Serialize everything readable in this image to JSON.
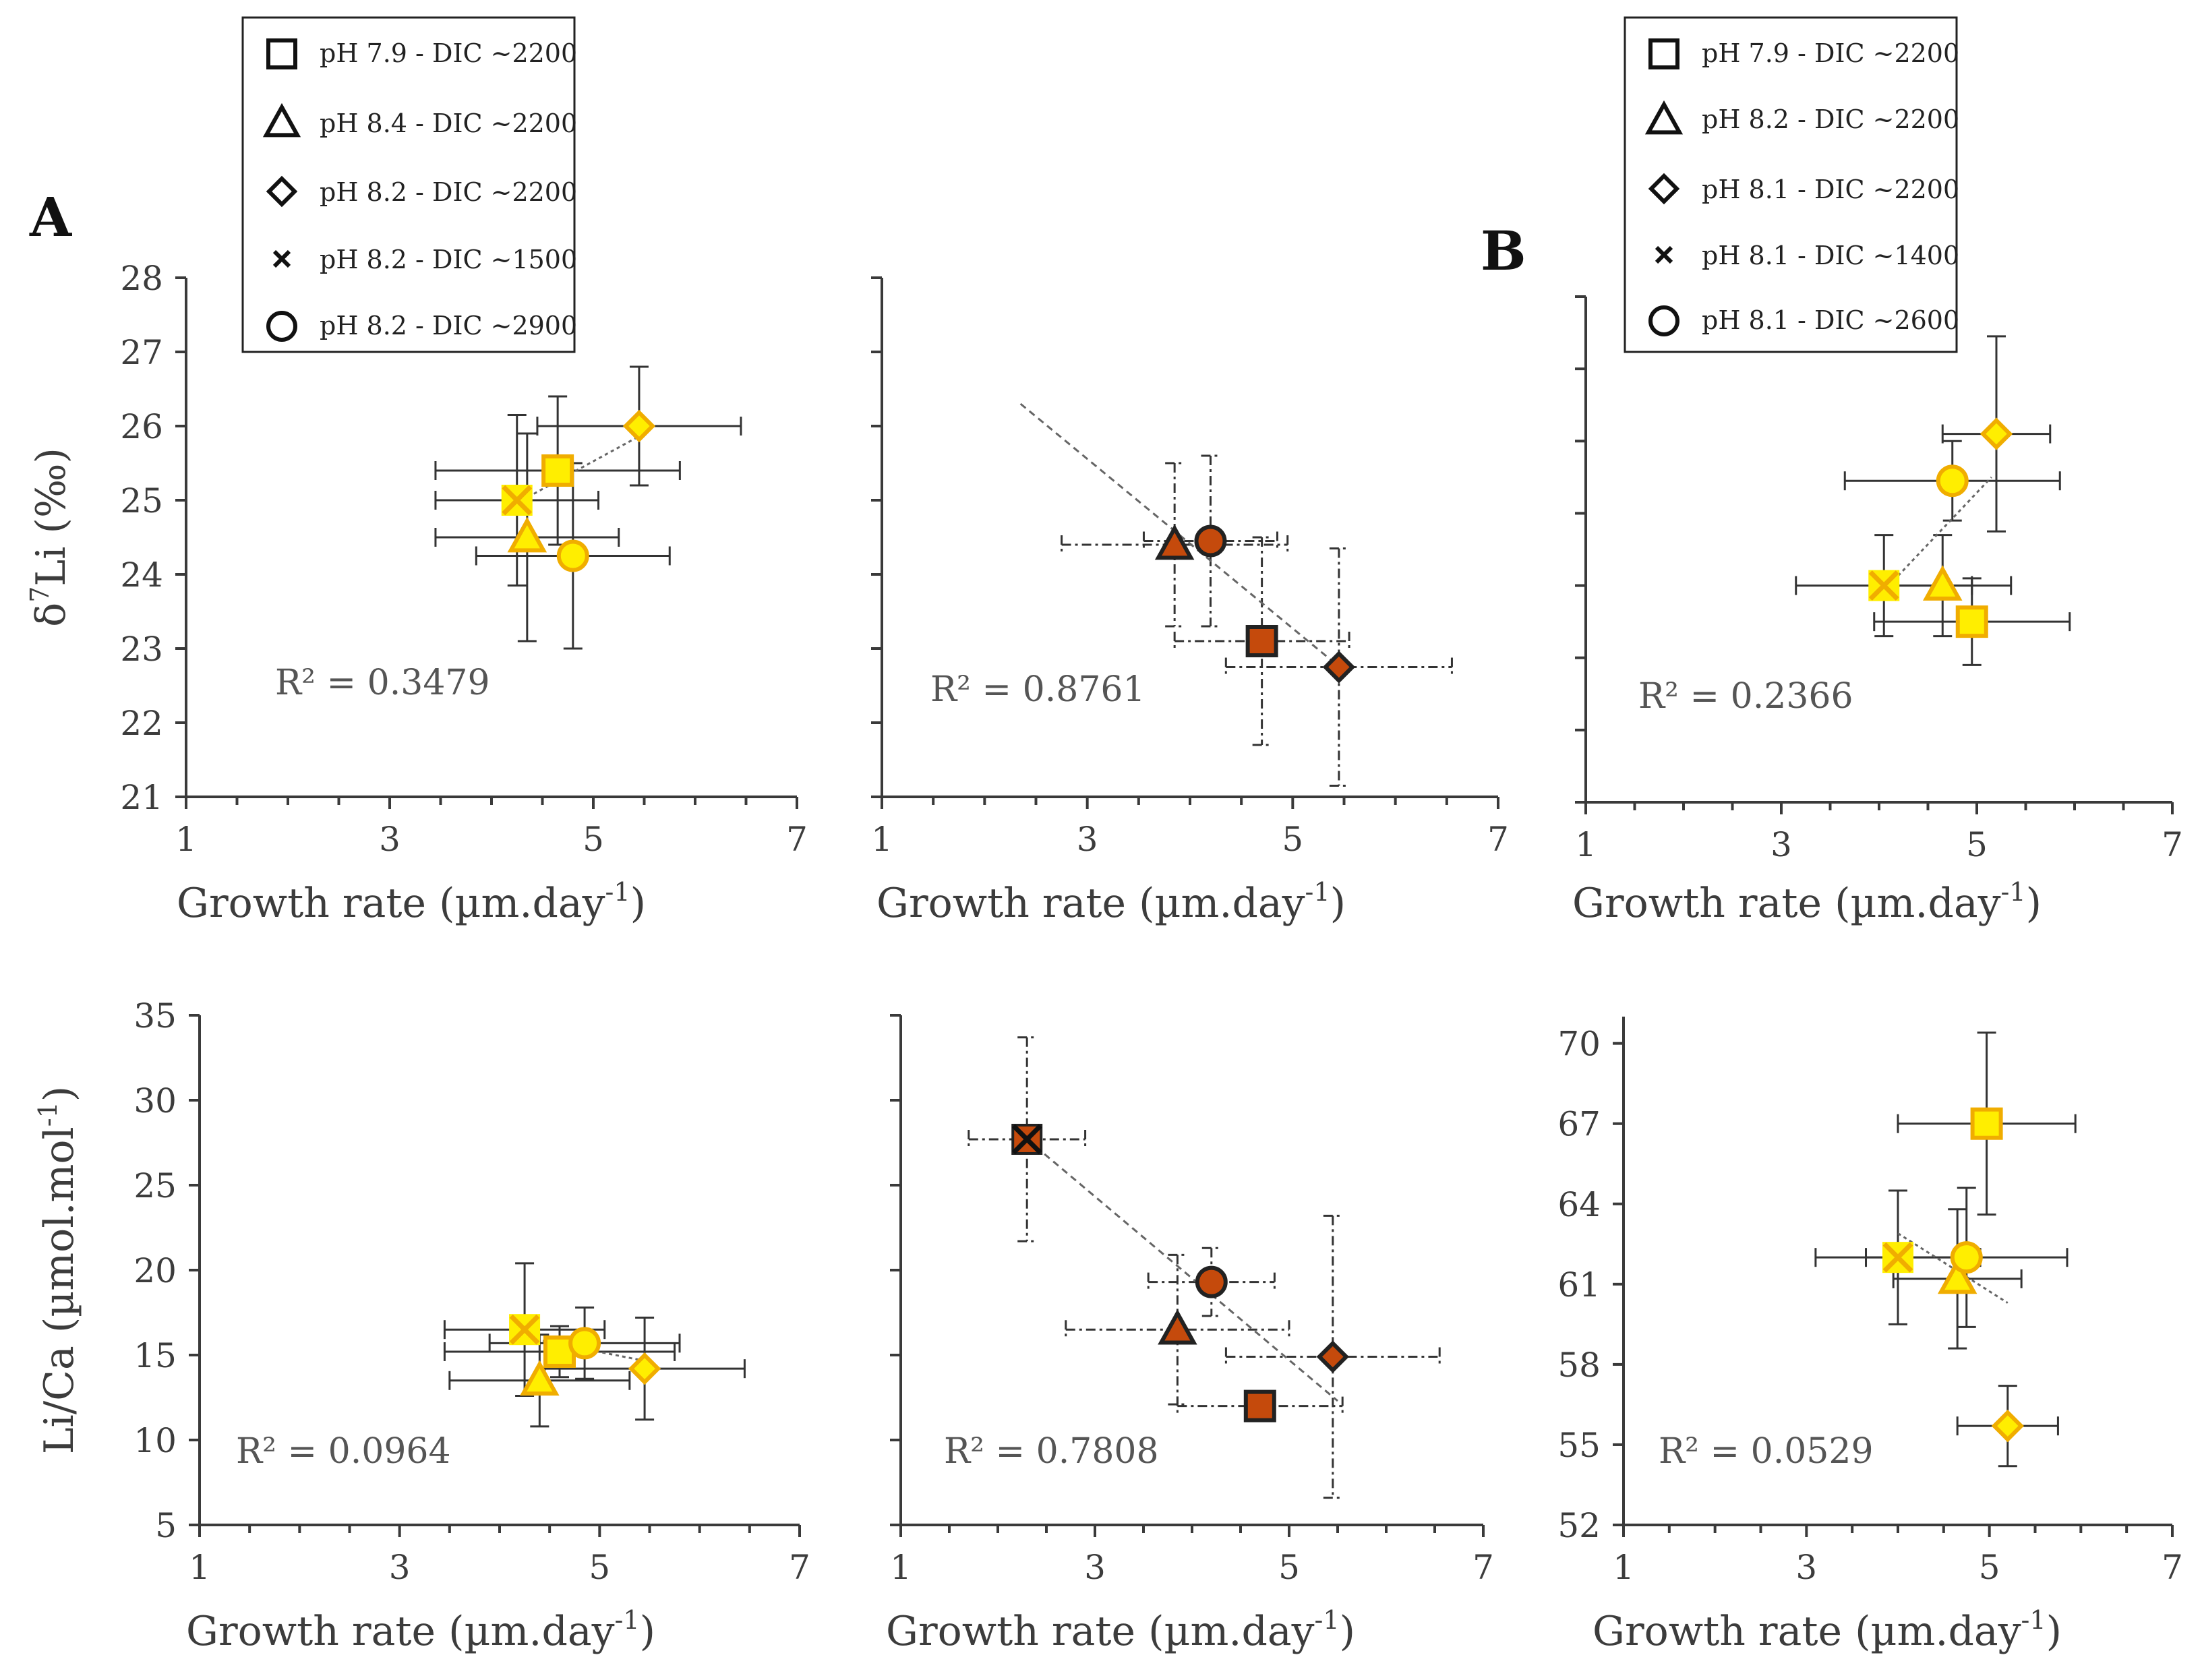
{
  "figure": {
    "panel_labels": [
      "A",
      "B"
    ],
    "colors": {
      "yellow_fill": "#ffee00",
      "yellow_edge": "#f0ad00",
      "orange_fill": "#c54a0c",
      "dark_edge": "#222222",
      "axis": "#3a3a3a",
      "text": "#3c3c3c",
      "errorbar": "#333333"
    },
    "legends": {
      "A": [
        {
          "marker": "square",
          "label": "pH 7.9 - DIC ~2200"
        },
        {
          "marker": "triangle",
          "label": "pH 8.4 - DIC ~2200"
        },
        {
          "marker": "diamond",
          "label": "pH 8.2 - DIC ~2200"
        },
        {
          "marker": "cross",
          "label": "pH 8.2 - DIC ~1500"
        },
        {
          "marker": "circle",
          "label": "pH 8.2 - DIC ~2900"
        }
      ],
      "B": [
        {
          "marker": "square",
          "label": "pH 7.9 - DIC ~2200"
        },
        {
          "marker": "triangle",
          "label": "pH 8.2 - DIC ~2200"
        },
        {
          "marker": "diamond",
          "label": "pH 8.1 - DIC ~2200"
        },
        {
          "marker": "cross",
          "label": "pH 8.1 - DIC ~1400"
        },
        {
          "marker": "circle",
          "label": "pH 8.1 - DIC ~2600"
        }
      ]
    }
  },
  "chart_data": [
    {
      "id": "top-left",
      "type": "scatter",
      "group": "A",
      "style": "yellow",
      "xlabel": "Growth rate (µm.day",
      "xlabel_sup": "-1",
      "xlabel_close": ")",
      "ylabel": "δ",
      "ylabel_sup": "7",
      "ylabel_rest": "Li (‰)",
      "xlim": [
        1,
        7
      ],
      "xticks": [
        1,
        3,
        5,
        7
      ],
      "ylim": [
        21,
        28
      ],
      "yticks": [
        21,
        22,
        23,
        24,
        25,
        26,
        27,
        28
      ],
      "show_ytick_labels": true,
      "r2_label": "R² = 0.3479",
      "trendline": {
        "x": [
          4.3,
          5.5
        ],
        "y": [
          25.0,
          25.9
        ],
        "style": "dotted"
      },
      "points": [
        {
          "marker": "square",
          "x": 4.65,
          "y": 25.4,
          "xerr": 1.2,
          "yerr": 1.0
        },
        {
          "marker": "triangle",
          "x": 4.35,
          "y": 24.5,
          "xerr": 0.9,
          "yerr": 1.4
        },
        {
          "marker": "diamond",
          "x": 5.45,
          "y": 26.0,
          "xerr": 1.0,
          "yerr": 0.8
        },
        {
          "marker": "cross",
          "x": 4.25,
          "y": 25.0,
          "xerr": 0.8,
          "yerr": 1.15
        },
        {
          "marker": "circle",
          "x": 4.8,
          "y": 24.25,
          "xerr": 0.95,
          "yerr": 1.25
        }
      ]
    },
    {
      "id": "top-middle",
      "type": "scatter",
      "group": "A",
      "style": "orange",
      "xlabel": "Growth rate (µm.day",
      "xlabel_sup": "-1",
      "xlabel_close": ")",
      "xlim": [
        1,
        7
      ],
      "xticks": [
        1,
        3,
        5,
        7
      ],
      "ylim": [
        21,
        28
      ],
      "yticks": [
        21,
        22,
        23,
        24,
        25,
        26,
        27,
        28
      ],
      "show_ytick_labels": false,
      "r2_label": "R² = 0.8761",
      "trendline": {
        "x": [
          2.35,
          5.5
        ],
        "y": [
          26.3,
          22.7
        ],
        "style": "dashed"
      },
      "points": [
        {
          "marker": "square",
          "x": 4.7,
          "y": 23.1,
          "xerr": 0.85,
          "yerr": 1.4
        },
        {
          "marker": "triangle",
          "x": 3.85,
          "y": 24.4,
          "xerr": 1.1,
          "yerr": 1.1
        },
        {
          "marker": "diamond",
          "x": 5.45,
          "y": 22.75,
          "xerr": 1.1,
          "yerr": 1.6
        },
        {
          "marker": "circle",
          "x": 4.2,
          "y": 24.45,
          "xerr": 0.65,
          "yerr": 1.15
        }
      ]
    },
    {
      "id": "top-right",
      "type": "scatter",
      "group": "B",
      "style": "yellow",
      "xlabel": "Growth rate (µm.day",
      "xlabel_sup": "-1",
      "xlabel_close": ")",
      "xlim": [
        1,
        7
      ],
      "xticks": [
        1,
        3,
        5,
        7
      ],
      "ylim": [
        21,
        28
      ],
      "yticks": [
        21,
        22,
        23,
        24,
        25,
        26,
        27,
        28
      ],
      "show_ytick_labels": false,
      "r2_label": "R² = 0.2366",
      "trendline": {
        "x": [
          4.1,
          5.15
        ],
        "y": [
          24.0,
          25.5
        ],
        "style": "dotted"
      },
      "points": [
        {
          "marker": "square",
          "x": 4.95,
          "y": 23.5,
          "xerr": 1.0,
          "yerr": 0.6
        },
        {
          "marker": "triangle",
          "x": 4.65,
          "y": 24.0,
          "xerr": 0.7,
          "yerr": 0.7
        },
        {
          "marker": "diamond",
          "x": 5.2,
          "y": 26.1,
          "xerr": 0.55,
          "yerr": 1.35
        },
        {
          "marker": "cross",
          "x": 4.05,
          "y": 24.0,
          "xerr": 0.9,
          "yerr": 0.7
        },
        {
          "marker": "circle",
          "x": 4.75,
          "y": 25.45,
          "xerr": 1.1,
          "yerr": 0.55
        }
      ]
    },
    {
      "id": "bottom-left",
      "type": "scatter",
      "group": "A",
      "style": "yellow",
      "xlabel": "Growth rate (µm.day",
      "xlabel_sup": "-1",
      "xlabel_close": ")",
      "ylabel": "Li/Ca (µmol.mol",
      "ylabel_sup": "-1",
      "ylabel_rest": ")",
      "xlim": [
        1,
        7
      ],
      "xticks": [
        1,
        3,
        5,
        7
      ],
      "ylim": [
        5,
        35
      ],
      "yticks": [
        5,
        10,
        15,
        20,
        25,
        30,
        35
      ],
      "show_ytick_labels": true,
      "r2_label": "R² = 0.0964",
      "trendline": {
        "x": [
          4.3,
          5.5
        ],
        "y": [
          16.0,
          14.6
        ],
        "style": "dotted"
      },
      "points": [
        {
          "marker": "square",
          "x": 4.6,
          "y": 15.2,
          "xerr": 1.15,
          "yerr": 1.5
        },
        {
          "marker": "triangle",
          "x": 4.4,
          "y": 13.5,
          "xerr": 0.9,
          "yerr": 2.7
        },
        {
          "marker": "diamond",
          "x": 5.45,
          "y": 14.2,
          "xerr": 1.0,
          "yerr": 3.0
        },
        {
          "marker": "cross",
          "x": 4.25,
          "y": 16.5,
          "xerr": 0.8,
          "yerr": 3.9
        },
        {
          "marker": "circle",
          "x": 4.85,
          "y": 15.7,
          "xerr": 0.95,
          "yerr": 2.1
        }
      ]
    },
    {
      "id": "bottom-middle",
      "type": "scatter",
      "group": "A",
      "style": "orange",
      "xlabel": "Growth rate (µm.day",
      "xlabel_sup": "-1",
      "xlabel_close": ")",
      "xlim": [
        1,
        7
      ],
      "xticks": [
        1,
        3,
        5,
        7
      ],
      "ylim": [
        5,
        35
      ],
      "yticks": [
        5,
        10,
        15,
        20,
        25,
        30,
        35
      ],
      "show_ytick_labels": false,
      "r2_label": "R² = 0.7808",
      "trendline": {
        "x": [
          2.3,
          5.5
        ],
        "y": [
          27.7,
          12.3
        ],
        "style": "dashed"
      },
      "points": [
        {
          "marker": "square",
          "x": 4.7,
          "y": 12.0,
          "xerr": 0.85,
          "yerr": 0.8
        },
        {
          "marker": "triangle",
          "x": 3.85,
          "y": 16.5,
          "xerr": 1.15,
          "yerr": 4.4
        },
        {
          "marker": "diamond",
          "x": 5.45,
          "y": 14.9,
          "xerr": 1.1,
          "yerr": 8.3
        },
        {
          "marker": "cross",
          "x": 2.3,
          "y": 27.7,
          "xerr": 0.6,
          "yerr": 6.0
        },
        {
          "marker": "circle",
          "x": 4.2,
          "y": 19.3,
          "xerr": 0.65,
          "yerr": 2.0
        }
      ]
    },
    {
      "id": "bottom-right",
      "type": "scatter",
      "group": "B",
      "style": "yellow",
      "xlabel": "Growth rate (µm.day",
      "xlabel_sup": "-1",
      "xlabel_close": ")",
      "xlim": [
        1,
        7
      ],
      "xticks": [
        1,
        3,
        5,
        7
      ],
      "ylim": [
        52,
        71
      ],
      "yticks": [
        52,
        55,
        58,
        61,
        64,
        67,
        70
      ],
      "show_ytick_labels": true,
      "r2_label": "R² = 0.0529",
      "trendline": {
        "x": [
          4.0,
          5.2
        ],
        "y": [
          62.9,
          60.3
        ],
        "style": "dotted"
      },
      "points": [
        {
          "marker": "square",
          "x": 4.97,
          "y": 67.0,
          "xerr": 0.97,
          "yerr": 3.4
        },
        {
          "marker": "triangle",
          "x": 4.65,
          "y": 61.2,
          "xerr": 0.7,
          "yerr": 2.6
        },
        {
          "marker": "diamond",
          "x": 5.2,
          "y": 55.7,
          "xerr": 0.55,
          "yerr": 1.5
        },
        {
          "marker": "cross",
          "x": 4.0,
          "y": 62.0,
          "xerr": 0.9,
          "yerr": 2.5
        },
        {
          "marker": "circle",
          "x": 4.75,
          "y": 62.0,
          "xerr": 1.1,
          "yerr": 2.6
        }
      ]
    }
  ]
}
